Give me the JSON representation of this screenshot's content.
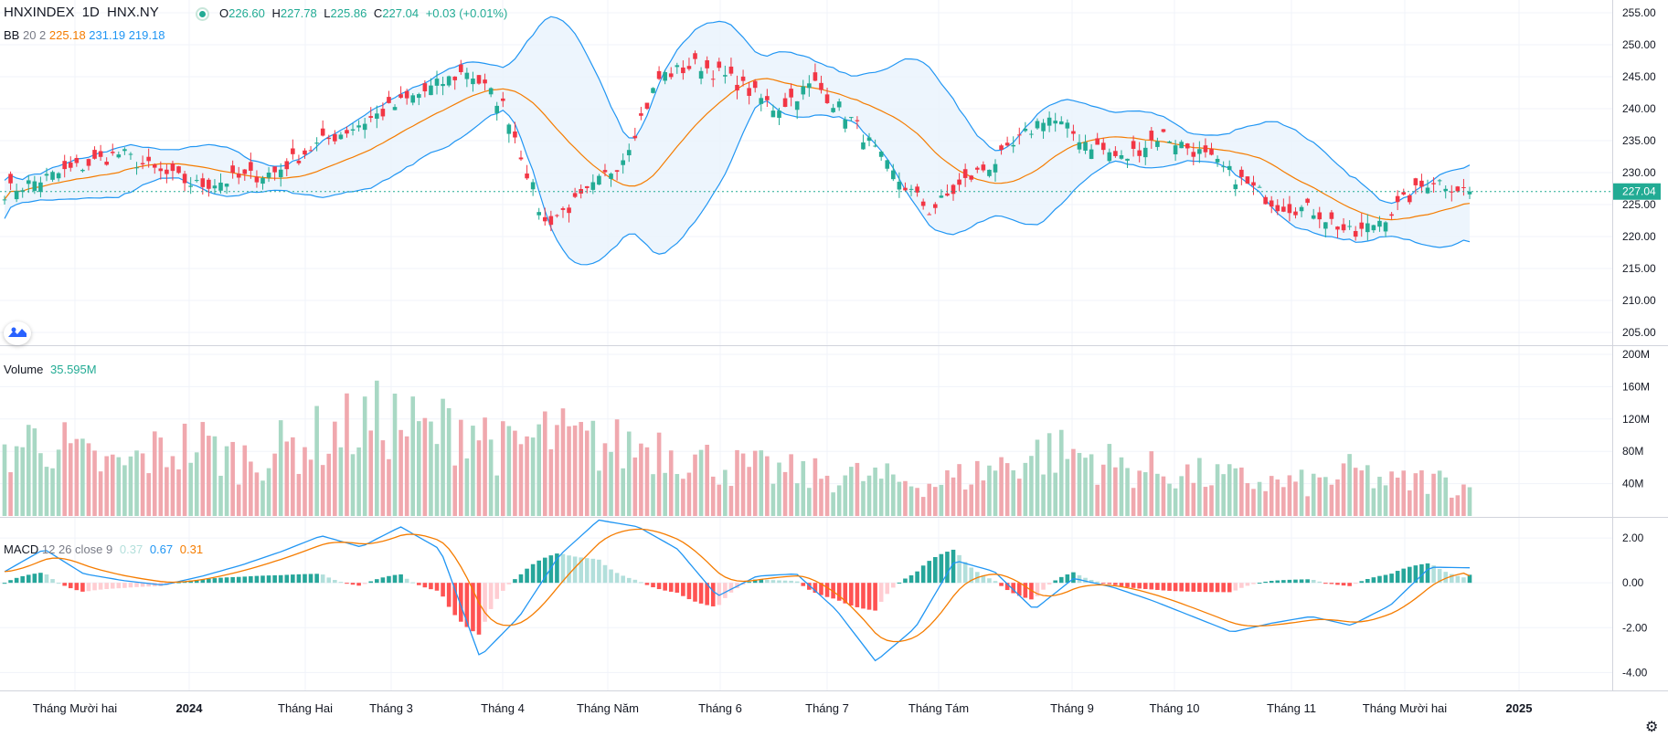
{
  "header": {
    "symbol": "HNXINDEX",
    "interval": "1D",
    "exchange": "HNX.NY",
    "open_label": "O",
    "open": "226.60",
    "high_label": "H",
    "high": "227.78",
    "low_label": "L",
    "low": "225.86",
    "close_label": "C",
    "close": "227.04",
    "change": "+0.03 (+0.01%)"
  },
  "bb": {
    "label": "BB",
    "params": "20 2",
    "basis": "225.18",
    "upper": "231.19",
    "lower": "219.18"
  },
  "volume": {
    "label": "Volume",
    "value": "35.595M"
  },
  "macd": {
    "label": "MACD",
    "params": "12 26 close 9",
    "hist": "0.37",
    "macd": "0.67",
    "signal": "0.31"
  },
  "price_axis": {
    "ticks": [
      "255.00",
      "250.00",
      "245.00",
      "240.00",
      "235.00",
      "230.00",
      "225.00",
      "220.00",
      "215.00",
      "210.00",
      "205.00"
    ],
    "last_price_tag": "227.04"
  },
  "volume_axis": {
    "ticks": [
      "200M",
      "160M",
      "120M",
      "80M",
      "40M"
    ]
  },
  "macd_axis": {
    "ticks": [
      "2.00",
      "0.00",
      "-2.00",
      "-4.00"
    ]
  },
  "time_axis": {
    "labels": [
      "Tháng Mười hai",
      "2024",
      "Tháng Hai",
      "Tháng 3",
      "Tháng 4",
      "Tháng Năm",
      "Tháng 6",
      "Tháng 7",
      "Tháng Tám",
      "Tháng 9",
      "Tháng 10",
      "Tháng 11",
      "Tháng Mười hai",
      "2025"
    ]
  },
  "colors": {
    "up": "#22ab94",
    "down": "#f23645",
    "vol_up": "#a8d8c4",
    "vol_down": "#f0a8ae",
    "hist_up_strong": "#26a69a",
    "hist_up_weak": "#b2dfdb",
    "hist_down_strong": "#ff5252",
    "hist_down_weak": "#ffcdd2",
    "bb_basis": "#f57c00",
    "bb_band": "#2196f3",
    "bb_fill": "#e8f3fd",
    "macd_line": "#2196f3",
    "signal_line": "#f57c00",
    "grid": "#f0f3fa"
  },
  "chart_data": [
    {
      "type": "candlestick",
      "title": "HNXINDEX 1D HNX.NY",
      "overlay": "Bollinger Bands (20, 2)",
      "ylim": [
        203,
        257
      ],
      "x_labels": [
        "Tháng Mười hai",
        "2024",
        "Tháng Hai",
        "Tháng 3",
        "Tháng 4",
        "Tháng Năm",
        "Tháng 6",
        "Tháng 7",
        "Tháng Tám",
        "Tháng 9",
        "Tháng 10",
        "Tháng 11",
        "Tháng Mười hai",
        "2025"
      ],
      "close_keypoints": [
        227,
        229,
        231,
        233,
        230,
        228,
        229,
        230,
        234,
        237,
        240,
        243,
        246,
        240,
        222,
        226,
        232,
        245,
        247,
        244,
        240,
        244,
        238,
        230,
        224,
        229,
        233,
        239,
        235,
        232,
        236,
        233,
        229,
        225,
        224,
        220,
        224,
        229,
        227
      ],
      "last": {
        "open": 226.6,
        "high": 227.78,
        "low": 225.86,
        "close": 227.04,
        "change": 0.03,
        "change_pct": 0.01
      },
      "bollinger_last": {
        "basis": 225.18,
        "upper": 231.19,
        "lower": 219.18
      }
    },
    {
      "type": "bar",
      "title": "Volume",
      "ylim": [
        0,
        200
      ],
      "unit": "M",
      "volume_keypoints": [
        80,
        100,
        70,
        60,
        80,
        90,
        70,
        80,
        95,
        110,
        120,
        100,
        120,
        80,
        100,
        90,
        85,
        90,
        70,
        60,
        55,
        50,
        50,
        45,
        40,
        50,
        65,
        80,
        75,
        60,
        55,
        50,
        45,
        40,
        40,
        55,
        40,
        45,
        35.595
      ]
    },
    {
      "type": "line",
      "title": "MACD 12 26 close 9",
      "ylim": [
        -4.8,
        2.9
      ],
      "macd_keypoints": [
        0.5,
        1.5,
        0.4,
        0.1,
        -0.1,
        0.3,
        0.8,
        1.4,
        2.1,
        1.6,
        2.5,
        1.5,
        -3.3,
        -1.5,
        1.2,
        2.8,
        2.5,
        1.5,
        -0.6,
        0.3,
        0.4,
        -1.2,
        -3.5,
        -2.0,
        1.0,
        0.5,
        -1.2,
        0.2,
        -0.2,
        -0.8,
        -1.5,
        -2.2,
        -1.8,
        -1.5,
        -1.9,
        -1.0,
        0.7,
        0.67
      ],
      "last": {
        "histogram": 0.37,
        "macd": 0.67,
        "signal": 0.31
      }
    }
  ]
}
